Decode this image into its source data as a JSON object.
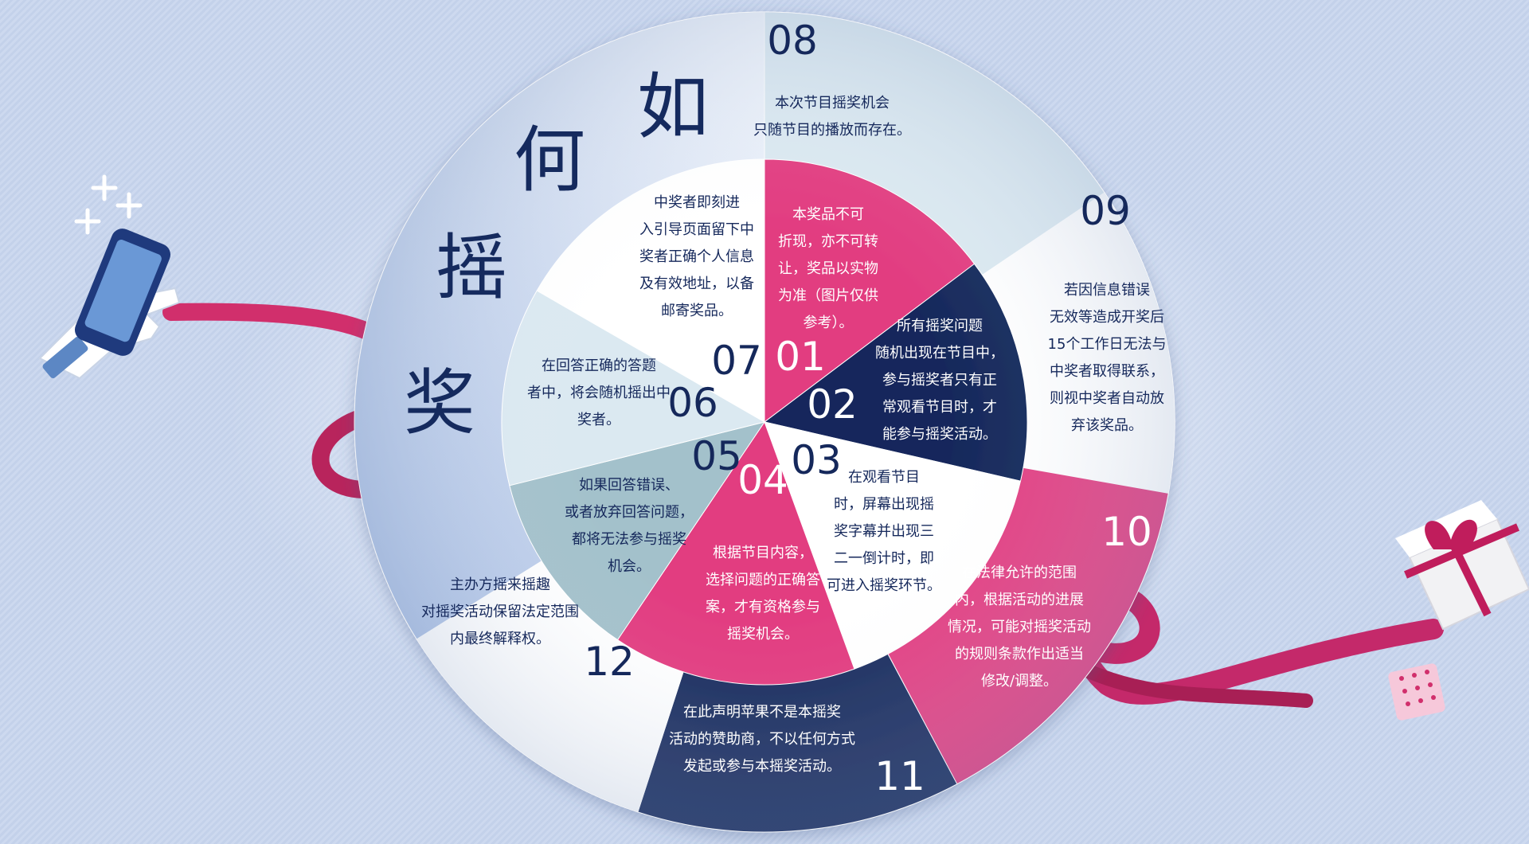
{
  "title_chars": [
    "如",
    "何",
    "摇",
    "奖"
  ],
  "colors": {
    "navy": "#15285b",
    "pink": "#e23c80",
    "white": "#ffffff",
    "pale": "#dbe9f1",
    "blue_light": "#c6d6ee",
    "teal_gray": "#a3c1cb",
    "ribbon": "#d12f6c"
  },
  "icons": [
    "phone-in-hand-icon",
    "sparkle-icon",
    "gift-box-icon",
    "ribbon-icon"
  ],
  "rules": [
    {
      "num": "01",
      "lines": [
        "本奖品不可",
        "折现，亦不可转",
        "让，奖品以实物",
        "为准（图片仅供",
        "参考）。"
      ]
    },
    {
      "num": "02",
      "lines": [
        "所有摇奖问题",
        "随机出现在节目中，",
        "参与摇奖者只有正",
        "常观看节目时，才",
        "能参与摇奖活动。"
      ]
    },
    {
      "num": "03",
      "lines": [
        "在观看节目",
        "时，屏幕出现摇",
        "奖字幕并出现三",
        "二一倒计时，即",
        "可进入摇奖环节。"
      ]
    },
    {
      "num": "04",
      "lines": [
        "根据节目内容，",
        "选择问题的正确答",
        "案，才有资格参与",
        "摇奖机会。"
      ]
    },
    {
      "num": "05",
      "lines": [
        "如果回答错误、",
        "或者放弃回答问题，",
        "都将无法参与摇奖",
        "机会。"
      ]
    },
    {
      "num": "06",
      "lines": [
        "在回答正确的答题",
        "者中，将会随机摇出中",
        "奖者。"
      ]
    },
    {
      "num": "07",
      "lines": [
        "中奖者即刻进",
        "入引导页面留下中",
        "奖者正确个人信息",
        "及有效地址，以备",
        "邮寄奖品。"
      ]
    },
    {
      "num": "08",
      "lines": [
        "本次节目摇奖机会",
        "只随节目的播放而存在。"
      ]
    },
    {
      "num": "09",
      "lines": [
        "若因信息错误",
        "无效等造成开奖后",
        "15个工作日无法与",
        "中奖者取得联系，",
        "则视中奖者自动放",
        "弃该奖品。"
      ]
    },
    {
      "num": "10",
      "lines": [
        "在法律允许的范围",
        "内，根据活动的进展",
        "情况，可能对摇奖活动",
        "的规则条款作出适当",
        "修改/调整。"
      ]
    },
    {
      "num": "11",
      "lines": [
        "在此声明苹果不是本摇奖",
        "活动的赞助商，不以任何方式",
        "发起或参与本摇奖活动。"
      ]
    },
    {
      "num": "12",
      "lines": [
        "主办方摇来摇趣",
        "对摇奖活动保留法定范围",
        "内最终解释权。"
      ]
    }
  ]
}
